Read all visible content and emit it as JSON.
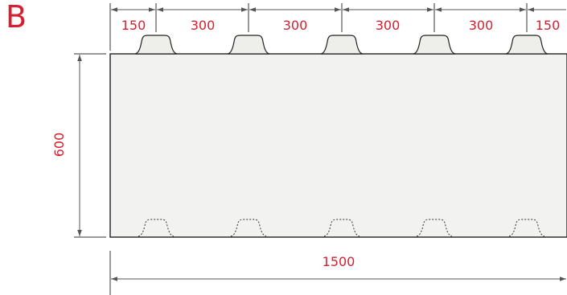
{
  "figure": {
    "label": "B"
  },
  "top_dimensions": [
    "150",
    "300",
    "300",
    "300",
    "300",
    "150"
  ],
  "height_dimension": "600",
  "width_dimension": "1500",
  "colors": {
    "dimension_text": "#d6202f",
    "panel_fill": "#f2f2f0",
    "outline": "#222222"
  }
}
